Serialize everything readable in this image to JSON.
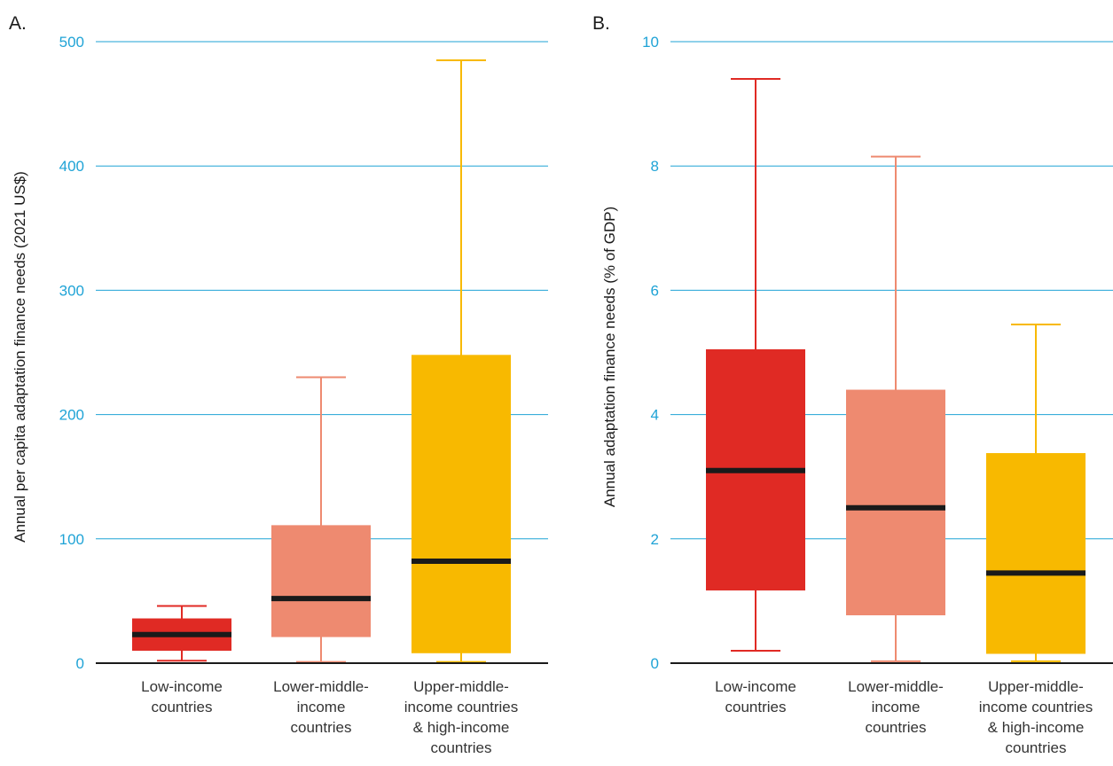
{
  "colors": {
    "grid": "#1fa3d6",
    "axis": "#1a1a1a",
    "median": "#1a1a1a",
    "tick_text": "#1fa3d6",
    "category_colors": [
      "#e02a24",
      "#ee8a70",
      "#f8b900"
    ]
  },
  "chart_data": [
    {
      "type": "box",
      "panel_label": "A.",
      "ylabel": "Annual per capita adaptation finance needs (2021 US$)",
      "ylim": [
        0,
        500
      ],
      "yticks": [
        0,
        100,
        200,
        300,
        400,
        500
      ],
      "grid": true,
      "categories": [
        [
          "Low-income",
          "countries"
        ],
        [
          "Lower-middle-",
          "income",
          "countries"
        ],
        [
          "Upper-middle-",
          "income countries",
          "& high-income",
          "countries"
        ]
      ],
      "boxes": [
        {
          "whisker_low": 2,
          "q1": 10,
          "median": 23,
          "q3": 36,
          "whisker_high": 46
        },
        {
          "whisker_low": 1,
          "q1": 21,
          "median": 52,
          "q3": 111,
          "whisker_high": 230
        },
        {
          "whisker_low": 1,
          "q1": 8,
          "median": 82,
          "q3": 248,
          "whisker_high": 485
        }
      ]
    },
    {
      "type": "box",
      "panel_label": "B.",
      "ylabel": "Annual adaptation finance needs (% of GDP)",
      "ylim": [
        0,
        10
      ],
      "yticks": [
        0,
        2,
        4,
        6,
        8,
        10
      ],
      "grid": true,
      "categories": [
        [
          "Low-income",
          "countries"
        ],
        [
          "Lower-middle-",
          "income",
          "countries"
        ],
        [
          "Upper-middle-",
          "income countries",
          "& high-income",
          "countries"
        ]
      ],
      "boxes": [
        {
          "whisker_low": 0.2,
          "q1": 1.17,
          "median": 3.1,
          "q3": 5.05,
          "whisker_high": 9.4
        },
        {
          "whisker_low": 0.03,
          "q1": 0.77,
          "median": 2.5,
          "q3": 4.4,
          "whisker_high": 8.15
        },
        {
          "whisker_low": 0.03,
          "q1": 0.15,
          "median": 1.45,
          "q3": 3.38,
          "whisker_high": 5.45
        }
      ]
    }
  ]
}
